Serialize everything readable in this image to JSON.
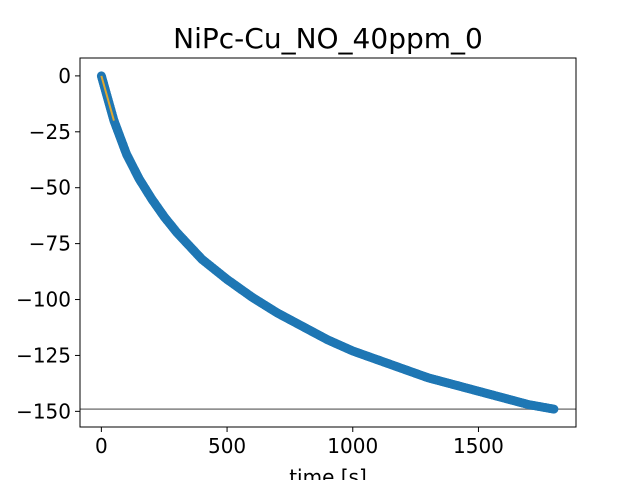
{
  "chart_data": {
    "type": "scatter",
    "title": "NiPc-Cu_NO_40ppm_0",
    "xlabel": "time [s]",
    "ylabel": "",
    "xlim": [
      -85,
      1888
    ],
    "ylim": [
      -157,
      8
    ],
    "xticks": [
      0,
      500,
      1000,
      1500
    ],
    "yticks": [
      0,
      -25,
      -50,
      -75,
      -100,
      -125,
      -150
    ],
    "xtick_labels": [
      "0",
      "500",
      "1000",
      "1500"
    ],
    "ytick_labels": [
      "0",
      "−25",
      "−50",
      "−75",
      "−100",
      "−125",
      "−150"
    ],
    "grid": false,
    "series": [
      {
        "kind": "scatter",
        "color": "#1f77b4",
        "points": [
          [
            0,
            0
          ],
          [
            20,
            -8
          ],
          [
            50,
            -20
          ],
          [
            100,
            -35
          ],
          [
            150,
            -46
          ],
          [
            200,
            -55
          ],
          [
            250,
            -63
          ],
          [
            300,
            -70
          ],
          [
            400,
            -82
          ],
          [
            500,
            -91
          ],
          [
            600,
            -99
          ],
          [
            700,
            -106
          ],
          [
            800,
            -112
          ],
          [
            900,
            -118
          ],
          [
            1000,
            -123
          ],
          [
            1100,
            -127
          ],
          [
            1200,
            -131
          ],
          [
            1300,
            -135
          ],
          [
            1400,
            -138
          ],
          [
            1500,
            -141
          ],
          [
            1600,
            -144
          ],
          [
            1700,
            -147
          ],
          [
            1800,
            -149
          ]
        ]
      },
      {
        "kind": "line",
        "color": "#e0a82e",
        "points": [
          [
            0,
            0
          ],
          [
            50,
            -20
          ]
        ]
      },
      {
        "kind": "hline",
        "color": "#808080",
        "y": -149
      }
    ]
  }
}
